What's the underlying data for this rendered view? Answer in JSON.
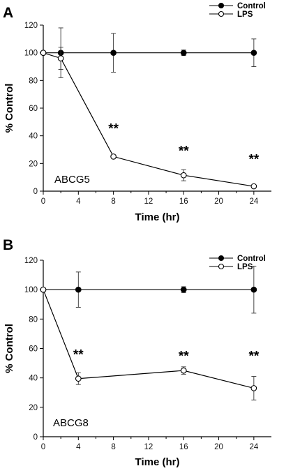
{
  "chart_data": [
    {
      "type": "line",
      "panel": "A",
      "label": "ABCG5",
      "xlabel": "Time (hr)",
      "ylabel": "% Control",
      "xlim": [
        0,
        26
      ],
      "ylim": [
        0,
        120
      ],
      "xticks": [
        0,
        4,
        8,
        12,
        16,
        20,
        24
      ],
      "yticks": [
        0,
        20,
        40,
        60,
        80,
        100,
        120
      ],
      "legend": "top-right",
      "grid": false,
      "series": [
        {
          "name": "Control",
          "marker": "filled-circle",
          "x": [
            0,
            2,
            8,
            16,
            24
          ],
          "y": [
            100,
            100,
            100,
            100,
            100
          ],
          "err": [
            0,
            18,
            14,
            2,
            10
          ]
        },
        {
          "name": "LPS",
          "marker": "open-circle",
          "x": [
            0,
            2,
            8,
            16,
            24
          ],
          "y": [
            100,
            96,
            25,
            11.5,
            3.5
          ],
          "err": [
            0,
            8,
            0,
            4,
            0
          ]
        }
      ],
      "annotations": [
        {
          "text": "**",
          "x": 8,
          "y": 42
        },
        {
          "text": "**",
          "x": 16,
          "y": 26
        },
        {
          "text": "**",
          "x": 24,
          "y": 20
        }
      ]
    },
    {
      "type": "line",
      "panel": "B",
      "label": "ABCG8",
      "xlabel": "Time (hr)",
      "ylabel": "% Control",
      "xlim": [
        0,
        26
      ],
      "ylim": [
        0,
        120
      ],
      "xticks": [
        0,
        4,
        8,
        12,
        16,
        20,
        24
      ],
      "yticks": [
        0,
        20,
        40,
        60,
        80,
        100,
        120
      ],
      "legend": "top-right",
      "grid": false,
      "series": [
        {
          "name": "Control",
          "marker": "filled-circle",
          "x": [
            0,
            4,
            16,
            24
          ],
          "y": [
            100,
            100,
            100,
            100
          ],
          "err": [
            0,
            12,
            2,
            16
          ]
        },
        {
          "name": "LPS",
          "marker": "open-circle",
          "x": [
            0,
            4,
            16,
            24
          ],
          "y": [
            100,
            39.5,
            45,
            33
          ],
          "err": [
            0,
            4,
            2.5,
            8
          ]
        }
      ],
      "annotations": [
        {
          "text": "**",
          "x": 4,
          "y": 53
        },
        {
          "text": "**",
          "x": 16,
          "y": 52
        },
        {
          "text": "**",
          "x": 24,
          "y": 52
        }
      ]
    }
  ]
}
